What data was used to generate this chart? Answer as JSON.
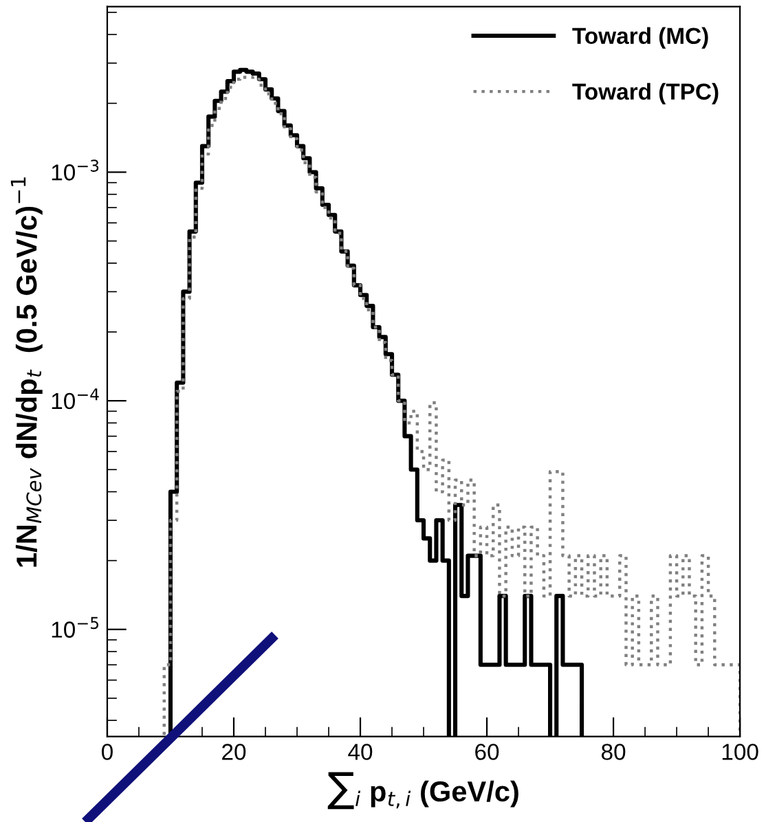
{
  "chart_data": {
    "type": "histogram",
    "xlabel": "∑$_{i}$ p$_{t,i}$ (GeV/c)",
    "ylabel": "1/N$_{MCev}$ dN/dp$_{t}$  (0.5 GeV/c)$^{−1}$",
    "bins": [
      9,
      10,
      11,
      12,
      13,
      14,
      15,
      16,
      17,
      18,
      19,
      20,
      21,
      22,
      23,
      24,
      25,
      26,
      27,
      28,
      29,
      30,
      31,
      32,
      33,
      34,
      35,
      36,
      37,
      38,
      39,
      40,
      41,
      42,
      43,
      44,
      45,
      46,
      47,
      48,
      49,
      50,
      51,
      52,
      53,
      54,
      55,
      56,
      57,
      58,
      59,
      60,
      61,
      62,
      63,
      64,
      65,
      66,
      67,
      68,
      69,
      70,
      71,
      72,
      73,
      74,
      75,
      76,
      77,
      78,
      79,
      80,
      81,
      82,
      83,
      84,
      85,
      86,
      87,
      88,
      89,
      90,
      91,
      92,
      93,
      94,
      95,
      96,
      97,
      98,
      99,
      100
    ],
    "series": [
      {
        "name": "Toward (MC)",
        "color": "#000000",
        "line_style": "solid",
        "bins": [
          10,
          11,
          12,
          13,
          14,
          15,
          16,
          17,
          18,
          19,
          20,
          21,
          22,
          23,
          24,
          25,
          26,
          27,
          28,
          29,
          30,
          31,
          32,
          33,
          34,
          35,
          36,
          37,
          38,
          39,
          40,
          41,
          42,
          43,
          44,
          45,
          46,
          47,
          48,
          49,
          50,
          51,
          52,
          53,
          54,
          55,
          56,
          57,
          58,
          59,
          60,
          61,
          62,
          63,
          64,
          65,
          66,
          67,
          68,
          69,
          70,
          71,
          72,
          73,
          74,
          75
        ],
        "values": [
          4e-05,
          0.00012,
          0.0003,
          0.00055,
          0.0009,
          0.0013,
          0.00175,
          0.00205,
          0.00225,
          0.0025,
          0.00275,
          0.0028,
          0.00275,
          0.0027,
          0.00255,
          0.0023,
          0.0021,
          0.00185,
          0.0016,
          0.00145,
          0.0013,
          0.00115,
          0.001,
          0.00085,
          0.00072,
          0.00065,
          0.00055,
          0.00045,
          0.00039,
          0.00032,
          0.00029,
          0.00026,
          0.00021,
          0.00019,
          0.00016,
          0.00013,
          0.0001,
          7e-05,
          5e-05,
          3e-05,
          2.5e-05,
          2e-05,
          3e-05,
          2e-05,
          null,
          3.5e-05,
          1.4e-05,
          2.1e-05,
          2.1e-05,
          7e-06,
          7e-06,
          7e-06,
          1.4e-05,
          7e-06,
          7e-06,
          7e-06,
          1.4e-05,
          7e-06,
          7e-06,
          7e-06,
          null,
          1.4e-05,
          7e-06,
          7e-06,
          7e-06
        ]
      },
      {
        "name": "Toward (TPC)",
        "color": "#808080",
        "line_style": "dotted",
        "values": [
          7e-06,
          3e-05,
          0.00011,
          0.00028,
          0.00052,
          0.00085,
          0.0012,
          0.0016,
          0.0019,
          0.0021,
          0.00235,
          0.00255,
          0.0026,
          0.0026,
          0.00255,
          0.0024,
          0.0022,
          0.002,
          0.0018,
          0.00155,
          0.0014,
          0.00125,
          0.0011,
          0.00095,
          0.00082,
          0.0007,
          0.00063,
          0.00054,
          0.00045,
          0.00038,
          0.00032,
          0.00028,
          0.00025,
          0.00021,
          0.00018,
          0.00015,
          0.00013,
          0.0001,
          8e-05,
          9e-05,
          6e-05,
          5e-05,
          9.8e-05,
          4e-05,
          5.5e-05,
          3e-05,
          4.5e-05,
          3.5e-05,
          4.5e-05,
          2.1e-05,
          2.8e-05,
          2.1e-05,
          3.5e-05,
          1.4e-05,
          2.8e-05,
          2.1e-05,
          2.8e-05,
          1.4e-05,
          2.8e-05,
          2.1e-05,
          1.4e-05,
          4.9e-05,
          4.9e-05,
          2.1e-05,
          1.4e-05,
          2.1e-05,
          1.4e-05,
          2.1e-05,
          1.4e-05,
          2.1e-05,
          1.4e-05,
          1.4e-05,
          2.1e-05,
          7e-06,
          1.4e-05,
          7e-06,
          7e-06,
          1.4e-05,
          7e-06,
          7e-06,
          2.1e-05,
          1.4e-05,
          2.1e-05,
          1.4e-05,
          7e-06,
          2.1e-05,
          1.4e-05,
          7e-06,
          7e-06,
          7e-06,
          7e-06
        ]
      }
    ],
    "log": "y",
    "xlim": [
      0,
      100
    ],
    "xticks": [
      0,
      20,
      40,
      60,
      80,
      100
    ],
    "ylim": [
      3.4e-06,
      0.0053
    ],
    "yticks": [
      {
        "value": 1e-05,
        "label": "10$^{−5}$"
      },
      {
        "value": 0.0001,
        "label": "10$^{−4}$"
      },
      {
        "value": 0.001,
        "label": "10$^{−3}$"
      }
    ],
    "grid": false,
    "legend": "top right"
  }
}
